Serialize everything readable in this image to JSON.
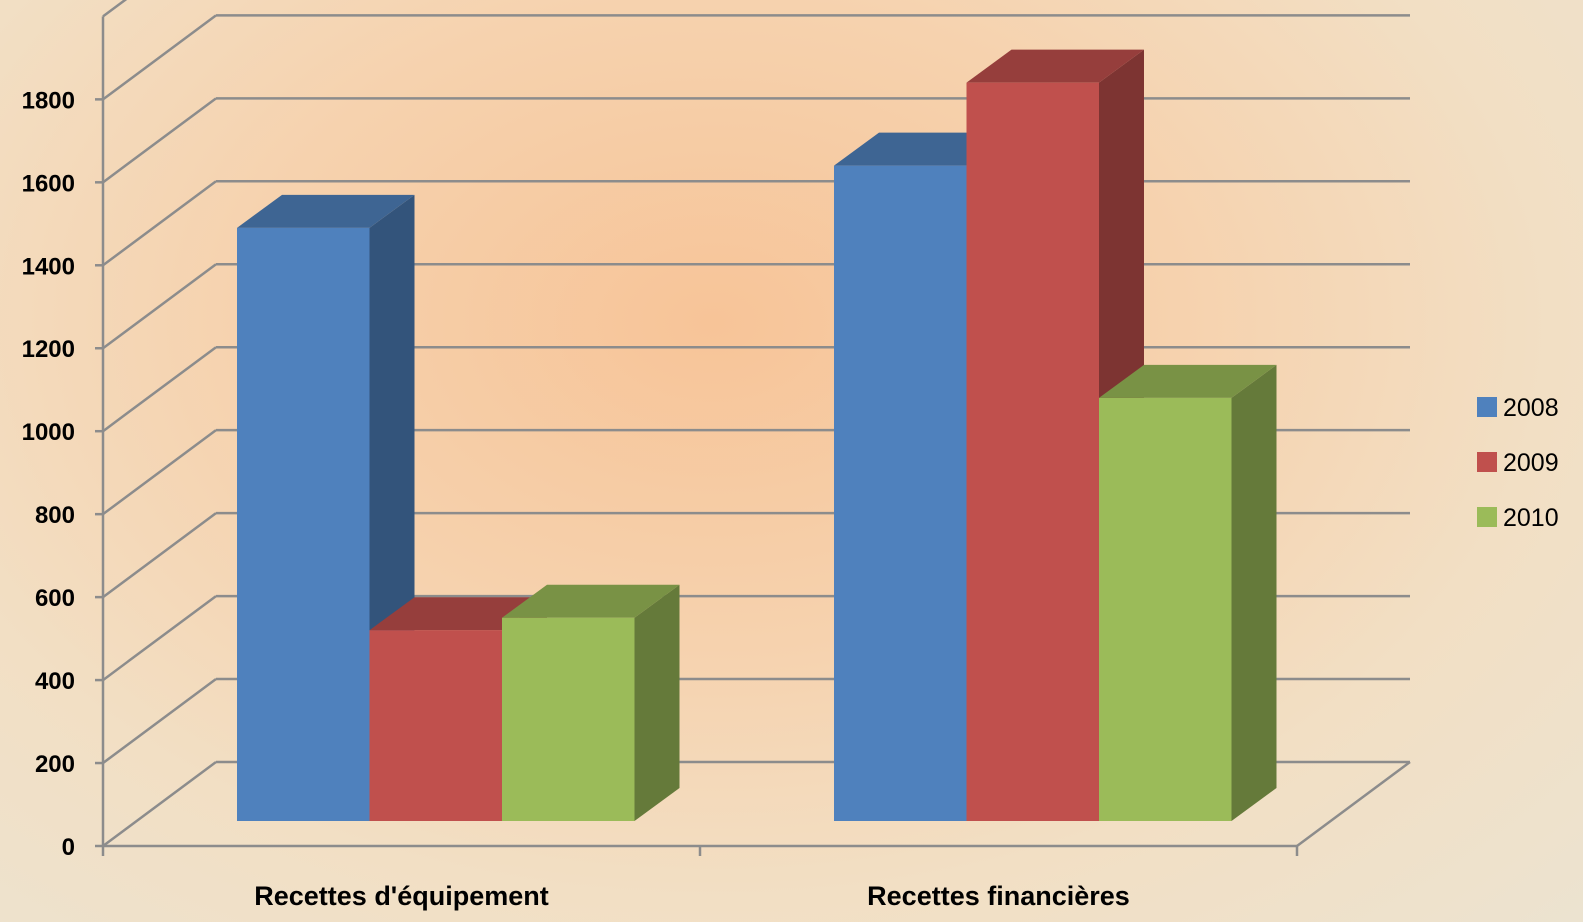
{
  "chart_data": {
    "type": "bar",
    "style": "3d-clustered-column",
    "categories": [
      "Recettes d'équipement",
      "Recettes financières"
    ],
    "series": [
      {
        "name": "2008",
        "values": [
          1430,
          1580
        ],
        "color": "#4f81bd"
      },
      {
        "name": "2009",
        "values": [
          460,
          1780
        ],
        "color": "#c0504d"
      },
      {
        "name": "2010",
        "values": [
          490,
          1020
        ],
        "color": "#9bbb59"
      }
    ],
    "yticks": [
      "0",
      "200",
      "400",
      "600",
      "800",
      "1000",
      "1200",
      "1400",
      "1600",
      "1800"
    ],
    "ylim": [
      0,
      2000
    ],
    "grid": true,
    "legend_position": "right",
    "title": "",
    "xlabel": "",
    "ylabel": ""
  }
}
